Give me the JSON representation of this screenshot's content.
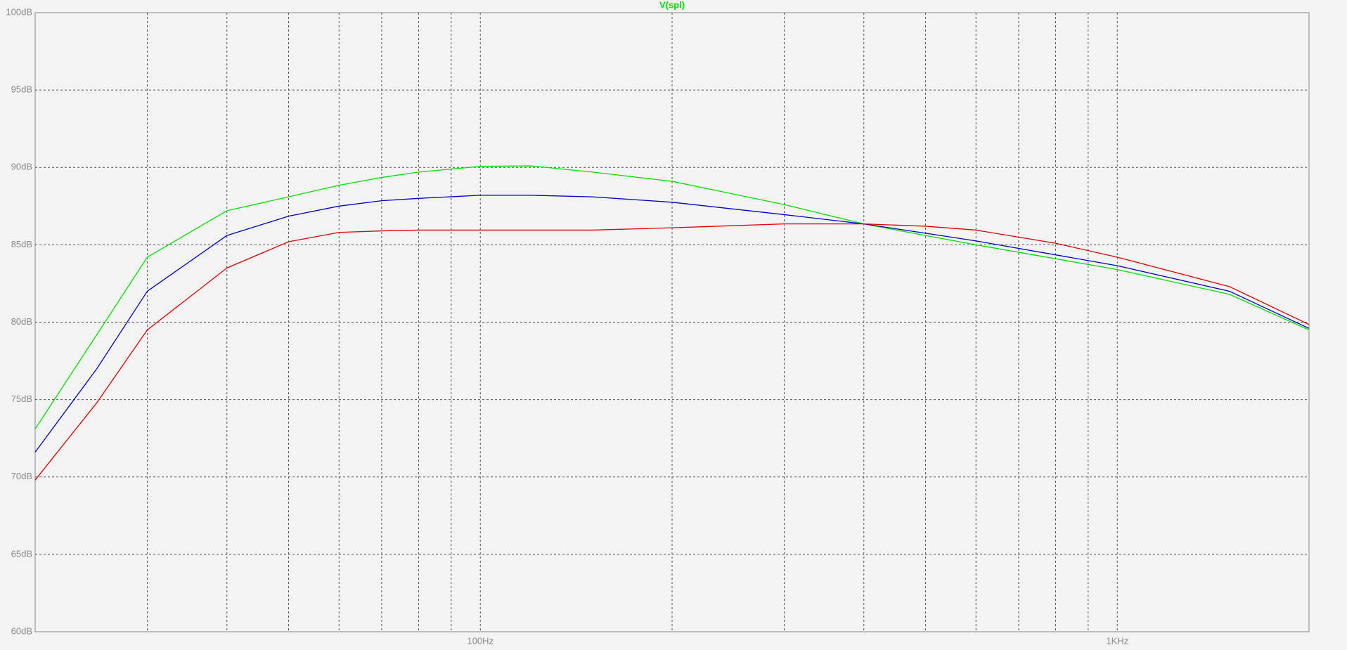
{
  "chart_data": {
    "type": "line",
    "title": "V(spl)",
    "title_color": "#00e000",
    "xscale": "log",
    "xlim": [
      20,
      2000
    ],
    "ylim": [
      60,
      100
    ],
    "grid": true,
    "xticks": [
      {
        "value": 100,
        "label": "100Hz"
      },
      {
        "value": 1000,
        "label": "1KHz"
      }
    ],
    "xgrid": [
      30,
      40,
      50,
      60,
      70,
      80,
      90,
      200,
      300,
      400,
      500,
      600,
      700,
      800,
      900
    ],
    "yticks": [
      {
        "value": 60,
        "label": "60dB"
      },
      {
        "value": 65,
        "label": "65dB"
      },
      {
        "value": 70,
        "label": "70dB"
      },
      {
        "value": 75,
        "label": "75dB"
      },
      {
        "value": 80,
        "label": "80dB"
      },
      {
        "value": 85,
        "label": "85dB"
      },
      {
        "value": 90,
        "label": "90dB"
      },
      {
        "value": 95,
        "label": "95dB"
      },
      {
        "value": 100,
        "label": "100dB"
      }
    ],
    "x": [
      20,
      25,
      30,
      40,
      50,
      60,
      70,
      80,
      100,
      120,
      150,
      200,
      300,
      400,
      500,
      600,
      800,
      1000,
      1500,
      2000
    ],
    "series": [
      {
        "color": "#00e000",
        "values": [
          73.1,
          79.2,
          84.2,
          87.2,
          88.1,
          88.85,
          89.35,
          89.7,
          90.07,
          90.1,
          89.7,
          89.1,
          87.6,
          86.35,
          85.6,
          85.0,
          84.1,
          83.4,
          81.8,
          79.5
        ]
      },
      {
        "color": "#0000c8",
        "values": [
          71.6,
          77.0,
          82.0,
          85.6,
          86.85,
          87.5,
          87.85,
          88.0,
          88.2,
          88.2,
          88.1,
          87.75,
          86.95,
          86.35,
          85.75,
          85.25,
          84.35,
          83.65,
          82.0,
          79.6
        ]
      },
      {
        "color": "#e00000",
        "values": [
          69.8,
          74.8,
          79.5,
          83.5,
          85.2,
          85.8,
          85.9,
          85.95,
          85.95,
          85.95,
          85.95,
          86.1,
          86.35,
          86.35,
          86.2,
          85.95,
          85.1,
          84.2,
          82.3,
          79.85
        ]
      }
    ]
  }
}
